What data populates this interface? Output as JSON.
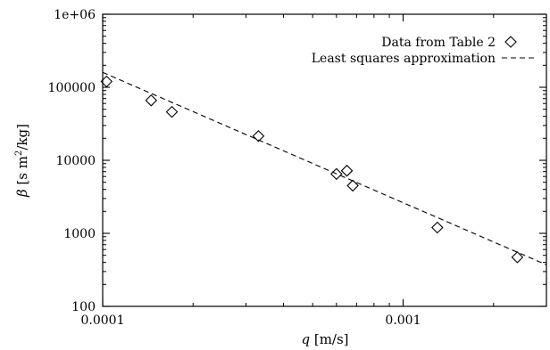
{
  "chart_data": {
    "type": "scatter",
    "title": "",
    "xlabel": "q [m/s]",
    "ylabel": "β [s m²/kg]",
    "xscale": "log",
    "yscale": "log",
    "xlim": [
      0.0001,
      0.003
    ],
    "ylim": [
      100,
      1000000
    ],
    "xticks": [
      {
        "value": 0.0001,
        "label": "0.0001"
      },
      {
        "value": 0.001,
        "label": "0.001"
      }
    ],
    "yticks": [
      {
        "value": 100,
        "label": "100"
      },
      {
        "value": 1000,
        "label": "1000"
      },
      {
        "value": 10000,
        "label": "10000"
      },
      {
        "value": 100000,
        "label": "100000"
      },
      {
        "value": 1000000,
        "label": "1e+06"
      }
    ],
    "grid": false,
    "legend_position": "top-right",
    "series": [
      {
        "name": "Data from Table 2",
        "kind": "points",
        "marker": "diamond",
        "x": [
          0.000103,
          0.000145,
          0.00017,
          0.00033,
          0.0006,
          0.00065,
          0.00068,
          0.0013,
          0.0024
        ],
        "y": [
          120000,
          66000,
          46000,
          21500,
          6500,
          7200,
          4500,
          1200,
          470
        ]
      },
      {
        "name": "Least squares approximation",
        "kind": "line",
        "style": "dashed",
        "x": [
          0.0001,
          0.003
        ],
        "y": [
          160000,
          370
        ]
      }
    ]
  }
}
